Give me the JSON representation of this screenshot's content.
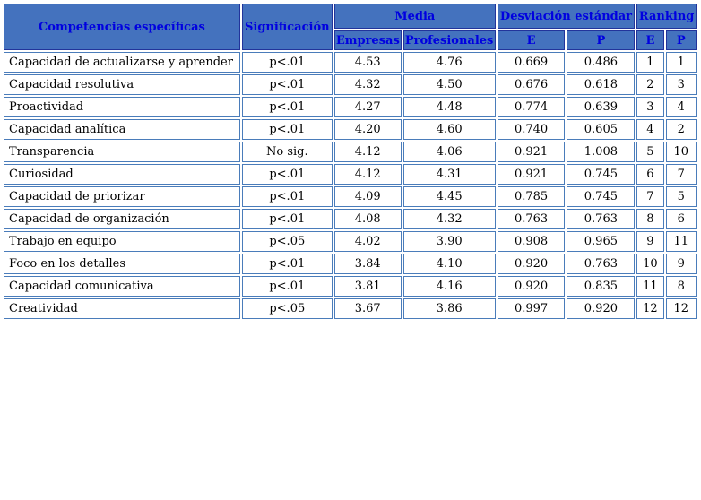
{
  "colors": {
    "header_bg": "#4472be",
    "header_text": "#0000e0",
    "header_border": "#22349b",
    "cell_border": "#4a7cba",
    "body_text": "#000000",
    "page_bg": "#ffffff"
  },
  "chart_data": {
    "type": "table",
    "header": {
      "competencias": "Competencias específicas",
      "significacion": "Significación",
      "group_media": "Media",
      "group_desviacion": "Desviación estándar",
      "group_ranking": "Ranking",
      "sub_media_empresas": "Empresas",
      "sub_media_profesionales": "Profesionales",
      "sub_desviacion_e": "E",
      "sub_desviacion_p": "P",
      "sub_ranking_e": "E",
      "sub_ranking_p": "P"
    },
    "rows": [
      {
        "competencia": "Capacidad de actualizarse y aprender",
        "significacion": "p<.01",
        "media_empresas": "4.53",
        "media_profesionales": "4.76",
        "de_e": "0.669",
        "de_p": "0.486",
        "rank_e": "1",
        "rank_p": "1"
      },
      {
        "competencia": "Capacidad resolutiva",
        "significacion": "p<.01",
        "media_empresas": "4.32",
        "media_profesionales": "4.50",
        "de_e": "0.676",
        "de_p": "0.618",
        "rank_e": "2",
        "rank_p": "3"
      },
      {
        "competencia": "Proactividad",
        "significacion": "p<.01",
        "media_empresas": "4.27",
        "media_profesionales": "4.48",
        "de_e": "0.774",
        "de_p": "0.639",
        "rank_e": "3",
        "rank_p": "4"
      },
      {
        "competencia": "Capacidad analítica",
        "significacion": "p<.01",
        "media_empresas": "4.20",
        "media_profesionales": "4.60",
        "de_e": "0.740",
        "de_p": "0.605",
        "rank_e": "4",
        "rank_p": "2"
      },
      {
        "competencia": "Transparencia",
        "significacion": "No sig.",
        "media_empresas": "4.12",
        "media_profesionales": "4.06",
        "de_e": "0.921",
        "de_p": "1.008",
        "rank_e": "5",
        "rank_p": "10"
      },
      {
        "competencia": "Curiosidad",
        "significacion": "p<.01",
        "media_empresas": "4.12",
        "media_profesionales": "4.31",
        "de_e": "0.921",
        "de_p": "0.745",
        "rank_e": "6",
        "rank_p": "7"
      },
      {
        "competencia": "Capacidad de priorizar",
        "significacion": "p<.01",
        "media_empresas": "4.09",
        "media_profesionales": "4.45",
        "de_e": "0.785",
        "de_p": "0.745",
        "rank_e": "7",
        "rank_p": "5"
      },
      {
        "competencia": "Capacidad de organización",
        "significacion": "p<.01",
        "media_empresas": "4.08",
        "media_profesionales": "4.32",
        "de_e": "0.763",
        "de_p": "0.763",
        "rank_e": "8",
        "rank_p": "6"
      },
      {
        "competencia": "Trabajo en equipo",
        "significacion": "p<.05",
        "media_empresas": "4.02",
        "media_profesionales": "3.90",
        "de_e": "0.908",
        "de_p": "0.965",
        "rank_e": "9",
        "rank_p": "11"
      },
      {
        "competencia": "Foco en los detalles",
        "significacion": "p<.01",
        "media_empresas": "3.84",
        "media_profesionales": "4.10",
        "de_e": "0.920",
        "de_p": "0.763",
        "rank_e": "10",
        "rank_p": "9"
      },
      {
        "competencia": "Capacidad comunicativa",
        "significacion": "p<.01",
        "media_empresas": "3.81",
        "media_profesionales": "4.16",
        "de_e": "0.920",
        "de_p": "0.835",
        "rank_e": "11",
        "rank_p": "8"
      },
      {
        "competencia": "Creatividad",
        "significacion": "p<.05",
        "media_empresas": "3.67",
        "media_profesionales": "3.86",
        "de_e": "0.997",
        "de_p": "0.920",
        "rank_e": "12",
        "rank_p": "12"
      }
    ]
  }
}
